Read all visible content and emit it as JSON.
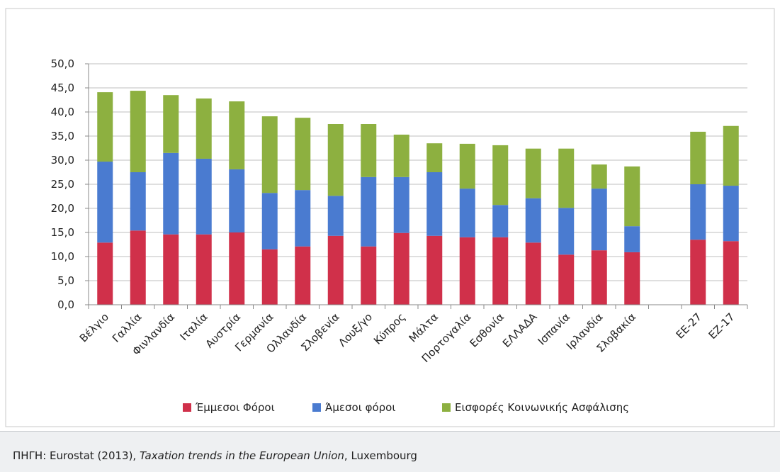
{
  "chart_data": {
    "type": "stacked_bar",
    "categories": [
      "Βέλγιο",
      "Γαλλία",
      "Φινλανδία",
      "Ιταλία",
      "Αυστρία",
      "Γερμανία",
      "Ολλανδία",
      "Σλοβενία",
      "Λουξ/γο",
      "Κύπρος",
      "Μάλτα",
      "Πορτογαλία",
      "Εσθονία",
      "ΕΛΛΑΔΑ",
      "Ισπανία",
      "Ιρλανδία",
      "Σλοβακία",
      null,
      "ΕΕ-27",
      "ΕΖ-17"
    ],
    "series": [
      {
        "name": "Έμμεσοι Φόροι",
        "color": "#d0304a",
        "values": [
          12.9,
          15.4,
          14.6,
          14.6,
          15.0,
          11.5,
          12.1,
          14.3,
          12.1,
          14.9,
          14.3,
          14.0,
          14.0,
          12.9,
          10.4,
          11.3,
          10.9,
          null,
          13.5,
          13.2
        ]
      },
      {
        "name": "Άμεσοι φόροι",
        "color": "#4a7bd0",
        "values": [
          16.8,
          12.1,
          16.9,
          15.7,
          13.1,
          11.7,
          11.7,
          8.3,
          14.4,
          11.6,
          13.2,
          10.1,
          6.7,
          9.2,
          9.7,
          12.8,
          5.4,
          null,
          11.5,
          11.5
        ]
      },
      {
        "name": "Εισφορές Κοινωνικής Ασφάλισης",
        "color": "#8db040",
        "values": [
          14.4,
          16.9,
          12.0,
          12.5,
          14.1,
          15.9,
          15.0,
          14.9,
          11.0,
          8.8,
          6.0,
          9.3,
          12.4,
          10.3,
          12.3,
          5.0,
          12.4,
          null,
          10.9,
          12.4
        ]
      }
    ],
    "ylim": [
      0,
      50
    ],
    "yticks": [
      {
        "value": 0,
        "label": "0,0"
      },
      {
        "value": 5,
        "label": "5,0"
      },
      {
        "value": 10,
        "label": "10,0"
      },
      {
        "value": 15,
        "label": "15,0"
      },
      {
        "value": 20,
        "label": "20,0"
      },
      {
        "value": 25,
        "label": "25,0"
      },
      {
        "value": 30,
        "label": "30,0"
      },
      {
        "value": 35,
        "label": "35,0"
      },
      {
        "value": 40,
        "label": "40,0"
      },
      {
        "value": 45,
        "label": "45,0"
      },
      {
        "value": 50,
        "label": "50,0"
      }
    ],
    "grid": true,
    "legend": "bottom"
  },
  "source": {
    "prefix": "ΠΗΓΗ: Eurostat (2013), ",
    "title": "Taxation trends in the European Union",
    "suffix": ", Luxembourg"
  }
}
